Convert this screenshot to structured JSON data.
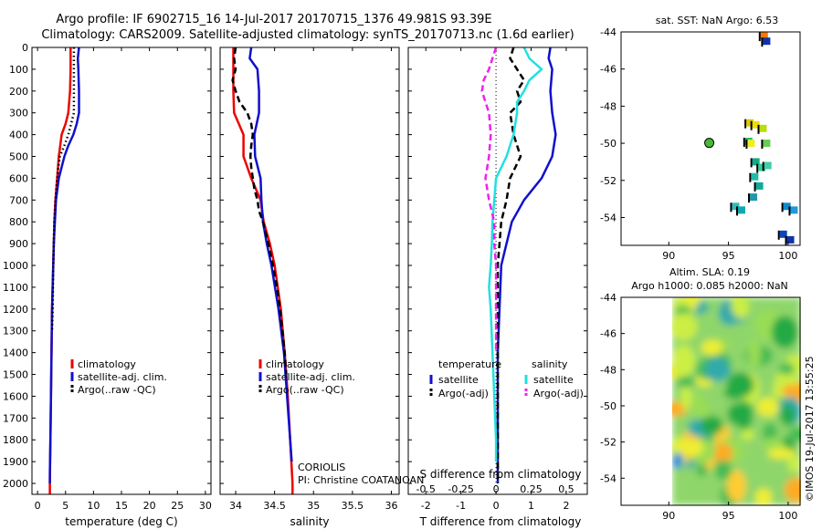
{
  "header": {
    "line1": "Argo profile: IF 6902715_16 14-Jul-2017 20170715_1376 49.981S 93.39E",
    "line2": "Climatology: CARS2009. Satellite-adjusted climatology: synTS_20170713.nc (1.6d earlier)"
  },
  "sst_title": "sat. SST: NaN Argo: 6.53",
  "sla_title1": "Altim. SLA: 0.19",
  "sla_title2": "Argo h1000: 0.085 h2000: NaN",
  "credit": "CORIOLIS",
  "pi": "PI: Christine COATANOAN",
  "stamp": "©IMOS 19-Jul-2017 13:55:25",
  "colors": {
    "red": "#ee0000",
    "blue": "#1010cc",
    "black": "#000000",
    "cyan": "#22e0e0",
    "magenta": "#ee22ee"
  },
  "chart_data": [
    {
      "type": "line",
      "xlabel": "temperature (deg C)",
      "xlim": [
        -1,
        31
      ],
      "ylim": [
        2050,
        0
      ],
      "xticks": [
        "0",
        "5",
        "10",
        "15",
        "20",
        "25",
        "30"
      ],
      "yticks": [
        "0",
        "100",
        "200",
        "300",
        "400",
        "500",
        "600",
        "700",
        "800",
        "900",
        "1000",
        "1100",
        "1200",
        "1300",
        "1400",
        "1500",
        "1600",
        "1700",
        "1800",
        "1900",
        "2000"
      ],
      "legend": [
        "climatology",
        "satellite-adj. clim.",
        "Argo(..raw -QC)"
      ],
      "series": [
        {
          "name": "climatology",
          "color": "red",
          "style": "solid",
          "depth": [
            0,
            100,
            200,
            300,
            350,
            400,
            500,
            600,
            700,
            800,
            900,
            1000,
            1200,
            1400,
            1600,
            1800,
            2000,
            2050
          ],
          "values": [
            5.9,
            5.9,
            5.8,
            5.5,
            5.0,
            4.3,
            3.8,
            3.5,
            3.2,
            3.0,
            2.9,
            2.8,
            2.6,
            2.5,
            2.4,
            2.3,
            2.2,
            2.2
          ]
        },
        {
          "name": "satellite-adj. clim.",
          "color": "blue",
          "style": "solid",
          "depth": [
            0,
            50,
            100,
            200,
            300,
            350,
            400,
            450,
            500,
            600,
            700,
            800,
            900,
            1000,
            1200,
            1400,
            1600,
            1800,
            1950,
            2000
          ],
          "values": [
            7.4,
            7.2,
            7.3,
            7.4,
            7.4,
            7.0,
            6.4,
            5.5,
            4.8,
            3.8,
            3.3,
            3.1,
            2.9,
            2.8,
            2.6,
            2.5,
            2.4,
            2.3,
            2.2,
            2.2
          ]
        },
        {
          "name": "Argo(..raw -QC)",
          "color": "black",
          "style": "dotted",
          "depth": [
            0,
            100,
            200,
            300,
            350,
            400,
            450,
            500,
            550,
            600,
            700,
            800,
            900,
            1000,
            1200,
            1300
          ],
          "values": [
            6.5,
            6.5,
            6.5,
            6.5,
            6.0,
            5.5,
            4.8,
            4.0,
            3.7,
            3.5,
            3.2,
            3.0,
            2.9,
            2.8,
            2.7,
            2.6
          ]
        }
      ]
    },
    {
      "type": "line",
      "xlabel": "salinity",
      "xlim": [
        33.8,
        36.1
      ],
      "ylim": [
        2050,
        0
      ],
      "xticks": [
        "34",
        "34.5",
        "35",
        "35.5",
        "36"
      ],
      "legend": [
        "climatology",
        "satellite-adj. clim.",
        "Argo(..raw -QC)"
      ],
      "series": [
        {
          "name": "climatology",
          "color": "red",
          "style": "solid",
          "depth": [
            0,
            100,
            200,
            300,
            400,
            500,
            600,
            700,
            800,
            900,
            1000,
            1200,
            1400,
            1600,
            1800,
            2000,
            2050
          ],
          "values": [
            33.97,
            33.97,
            33.97,
            33.98,
            34.1,
            34.1,
            34.2,
            34.32,
            34.36,
            34.44,
            34.5,
            34.58,
            34.63,
            34.67,
            34.7,
            34.73,
            34.73
          ]
        },
        {
          "name": "satellite-adj. clim.",
          "color": "blue",
          "style": "solid",
          "depth": [
            0,
            50,
            100,
            200,
            300,
            400,
            500,
            600,
            700,
            800,
            900,
            1000,
            1200,
            1400,
            1600,
            1800,
            1900
          ],
          "values": [
            34.2,
            34.18,
            34.28,
            34.3,
            34.3,
            34.24,
            34.25,
            34.32,
            34.33,
            34.35,
            34.4,
            34.46,
            34.55,
            34.62,
            34.66,
            34.7,
            34.72
          ]
        },
        {
          "name": "Argo(..raw -QC)",
          "color": "black",
          "style": "dashed",
          "depth": [
            0,
            50,
            100,
            150,
            200,
            250,
            300,
            350,
            400,
            450,
            500,
            550,
            600,
            650,
            700,
            750,
            800,
            900,
            1000,
            1100,
            1200,
            1300,
            1400,
            1500
          ],
          "values": [
            34.0,
            33.98,
            34.0,
            33.96,
            34.0,
            34.05,
            34.15,
            34.2,
            34.22,
            34.2,
            34.19,
            34.2,
            34.22,
            34.24,
            34.28,
            34.3,
            34.35,
            34.42,
            34.48,
            34.53,
            34.57,
            34.6,
            34.63,
            34.65
          ]
        }
      ]
    },
    {
      "type": "line",
      "xlabel": "T difference from climatology",
      "xlabel2": "S difference from climatology",
      "xlim": [
        -2.5,
        2.6
      ],
      "ylim": [
        2050,
        0
      ],
      "xticks": [
        "-2",
        "-1",
        "0",
        "1",
        "2"
      ],
      "xticks2": [
        "-0.5",
        "-0.25",
        "0",
        "0.25",
        "0.5"
      ],
      "legend_headers": [
        "temperature",
        "salinity"
      ],
      "legend": [
        "satellite",
        "Argo(-adj)",
        "satellite",
        "Argo(-adj)"
      ],
      "series": [
        {
          "name": "satellite",
          "group": "temperature",
          "color": "blue",
          "style": "solid",
          "depth": [
            0,
            50,
            100,
            200,
            300,
            400,
            500,
            600,
            700,
            800,
            900,
            1000,
            1200,
            1400,
            1600,
            1800,
            2000
          ],
          "values": [
            1.55,
            1.5,
            1.6,
            1.55,
            1.6,
            1.7,
            1.6,
            1.3,
            0.8,
            0.45,
            0.3,
            0.15,
            0.1,
            0.05,
            0.05,
            0.05,
            0.05
          ]
        },
        {
          "name": "Argo(-adj)",
          "group": "temperature",
          "color": "black",
          "style": "dashed",
          "depth": [
            0,
            50,
            100,
            150,
            200,
            250,
            300,
            400,
            500,
            600,
            700,
            800,
            900,
            1000,
            1200,
            1400,
            1600,
            1800,
            2000
          ],
          "values": [
            0.5,
            0.4,
            0.6,
            0.8,
            0.6,
            0.7,
            0.4,
            0.5,
            0.7,
            0.4,
            0.3,
            0.15,
            0.1,
            0.05,
            0.05,
            0.05,
            0.05,
            0.05,
            0.05
          ]
        },
        {
          "name": "satellite",
          "group": "salinity",
          "color": "cyan",
          "style": "solid",
          "depth": [
            0,
            50,
            100,
            150,
            200,
            250,
            300,
            400,
            500,
            600,
            700,
            800,
            900,
            1000,
            1100,
            1200,
            1400,
            1600,
            1800,
            1900
          ],
          "values": [
            0.8,
            0.95,
            1.3,
            0.95,
            0.8,
            0.6,
            0.6,
            0.5,
            0.3,
            0.0,
            -0.05,
            -0.1,
            -0.12,
            -0.15,
            -0.2,
            -0.15,
            -0.1,
            -0.05,
            0.0,
            0.0
          ]
        },
        {
          "name": "Argo(-adj)",
          "group": "salinity",
          "color": "magenta",
          "style": "dashed",
          "depth": [
            0,
            50,
            100,
            150,
            200,
            250,
            300,
            400,
            500,
            600,
            700,
            800,
            900,
            1000,
            1200,
            1400
          ],
          "values": [
            0.0,
            -0.1,
            -0.2,
            -0.35,
            -0.4,
            -0.3,
            -0.2,
            -0.15,
            -0.2,
            -0.3,
            -0.2,
            -0.05,
            -0.05,
            0.0,
            0.0,
            0.0
          ]
        }
      ]
    },
    {
      "type": "scatter",
      "title": "sat. SST: NaN Argo: 6.53",
      "xlim": [
        86,
        101
      ],
      "ylim": [
        -55.5,
        -44
      ],
      "xticks": [
        "90",
        "95",
        "100"
      ],
      "yticks": [
        "-44",
        "-46",
        "-48",
        "-50",
        "-52",
        "-54"
      ],
      "argo_position": {
        "lon": 93.39,
        "lat": -49.98
      },
      "patches": [
        {
          "lon": 98.0,
          "lat": -44.2,
          "color": "#ff7700"
        },
        {
          "lon": 98.2,
          "lat": -44.5,
          "color": "#1133aa"
        },
        {
          "lon": 96.8,
          "lat": -48.9,
          "color": "#ddcc00"
        },
        {
          "lon": 97.3,
          "lat": -49.0,
          "color": "#eedd00"
        },
        {
          "lon": 97.9,
          "lat": -49.2,
          "color": "#bbdd11"
        },
        {
          "lon": 96.7,
          "lat": -49.9,
          "color": "#22bb66"
        },
        {
          "lon": 96.9,
          "lat": -50.0,
          "color": "#eeee22"
        },
        {
          "lon": 98.2,
          "lat": -50.0,
          "color": "#66cc55"
        },
        {
          "lon": 97.3,
          "lat": -51.0,
          "color": "#11aa88"
        },
        {
          "lon": 97.8,
          "lat": -51.3,
          "color": "#33cc99"
        },
        {
          "lon": 98.3,
          "lat": -51.2,
          "color": "#44ccaa"
        },
        {
          "lon": 97.2,
          "lat": -51.8,
          "color": "#22bbaa"
        },
        {
          "lon": 97.6,
          "lat": -52.3,
          "color": "#11aa99"
        },
        {
          "lon": 97.1,
          "lat": -52.9,
          "color": "#2299aa"
        },
        {
          "lon": 95.6,
          "lat": -53.4,
          "color": "#33bbbb"
        },
        {
          "lon": 96.1,
          "lat": -53.6,
          "color": "#11aaaa"
        },
        {
          "lon": 99.9,
          "lat": -53.4,
          "color": "#1188cc"
        },
        {
          "lon": 100.5,
          "lat": -53.6,
          "color": "#2299dd"
        },
        {
          "lon": 99.6,
          "lat": -54.9,
          "color": "#1144bb"
        },
        {
          "lon": 100.2,
          "lat": -55.2,
          "color": "#1133aa"
        }
      ]
    },
    {
      "type": "heatmap",
      "title": "Altim. SLA: 0.19",
      "subtitle": "Argo h1000: 0.085 h2000: NaN",
      "xlim": [
        86,
        101
      ],
      "ylim": [
        -55.5,
        -44
      ],
      "xticks": [
        "90",
        "95",
        "100"
      ],
      "yticks": [
        "-44",
        "-46",
        "-48",
        "-50",
        "-52",
        "-54"
      ]
    }
  ]
}
